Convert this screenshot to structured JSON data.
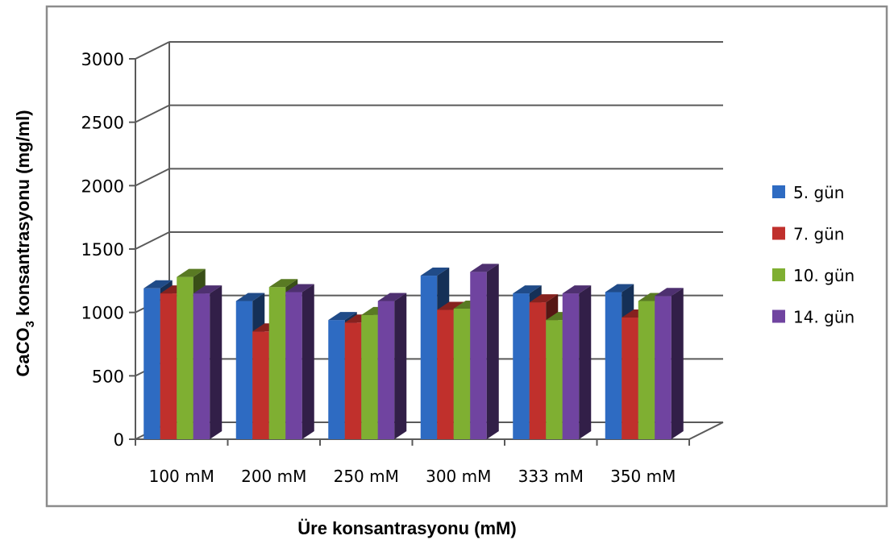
{
  "chart_data": {
    "type": "bar",
    "style": "3d-clustered",
    "categories": [
      "100 mM",
      "200 mM",
      "250 mM",
      "300 mM",
      "333 mM",
      "350 mM"
    ],
    "series": [
      {
        "name": "5. gün",
        "color": "#2E6BC2",
        "values": [
          1190,
          1090,
          940,
          1290,
          1150,
          1160
        ]
      },
      {
        "name": "7. gün",
        "color": "#C0302C",
        "values": [
          1150,
          850,
          920,
          1020,
          1080,
          960
        ]
      },
      {
        "name": "10. gün",
        "color": "#7FAF32",
        "values": [
          1280,
          1200,
          980,
          1030,
          940,
          1090
        ]
      },
      {
        "name": "14. gün",
        "color": "#7044A0",
        "values": [
          1150,
          1160,
          1090,
          1320,
          1150,
          1130
        ]
      }
    ],
    "yticks": [
      0,
      500,
      1000,
      1500,
      2000,
      2500,
      3000
    ],
    "ylim": [
      0,
      3000
    ],
    "ylabel_main": "CaCO",
    "ylabel_sub": "3",
    "ylabel_rest": " konsantrasyonu (mg/ml)",
    "xlabel": "Üre konsantrasyonu (mM)",
    "grid": true,
    "legend_position": "right"
  }
}
